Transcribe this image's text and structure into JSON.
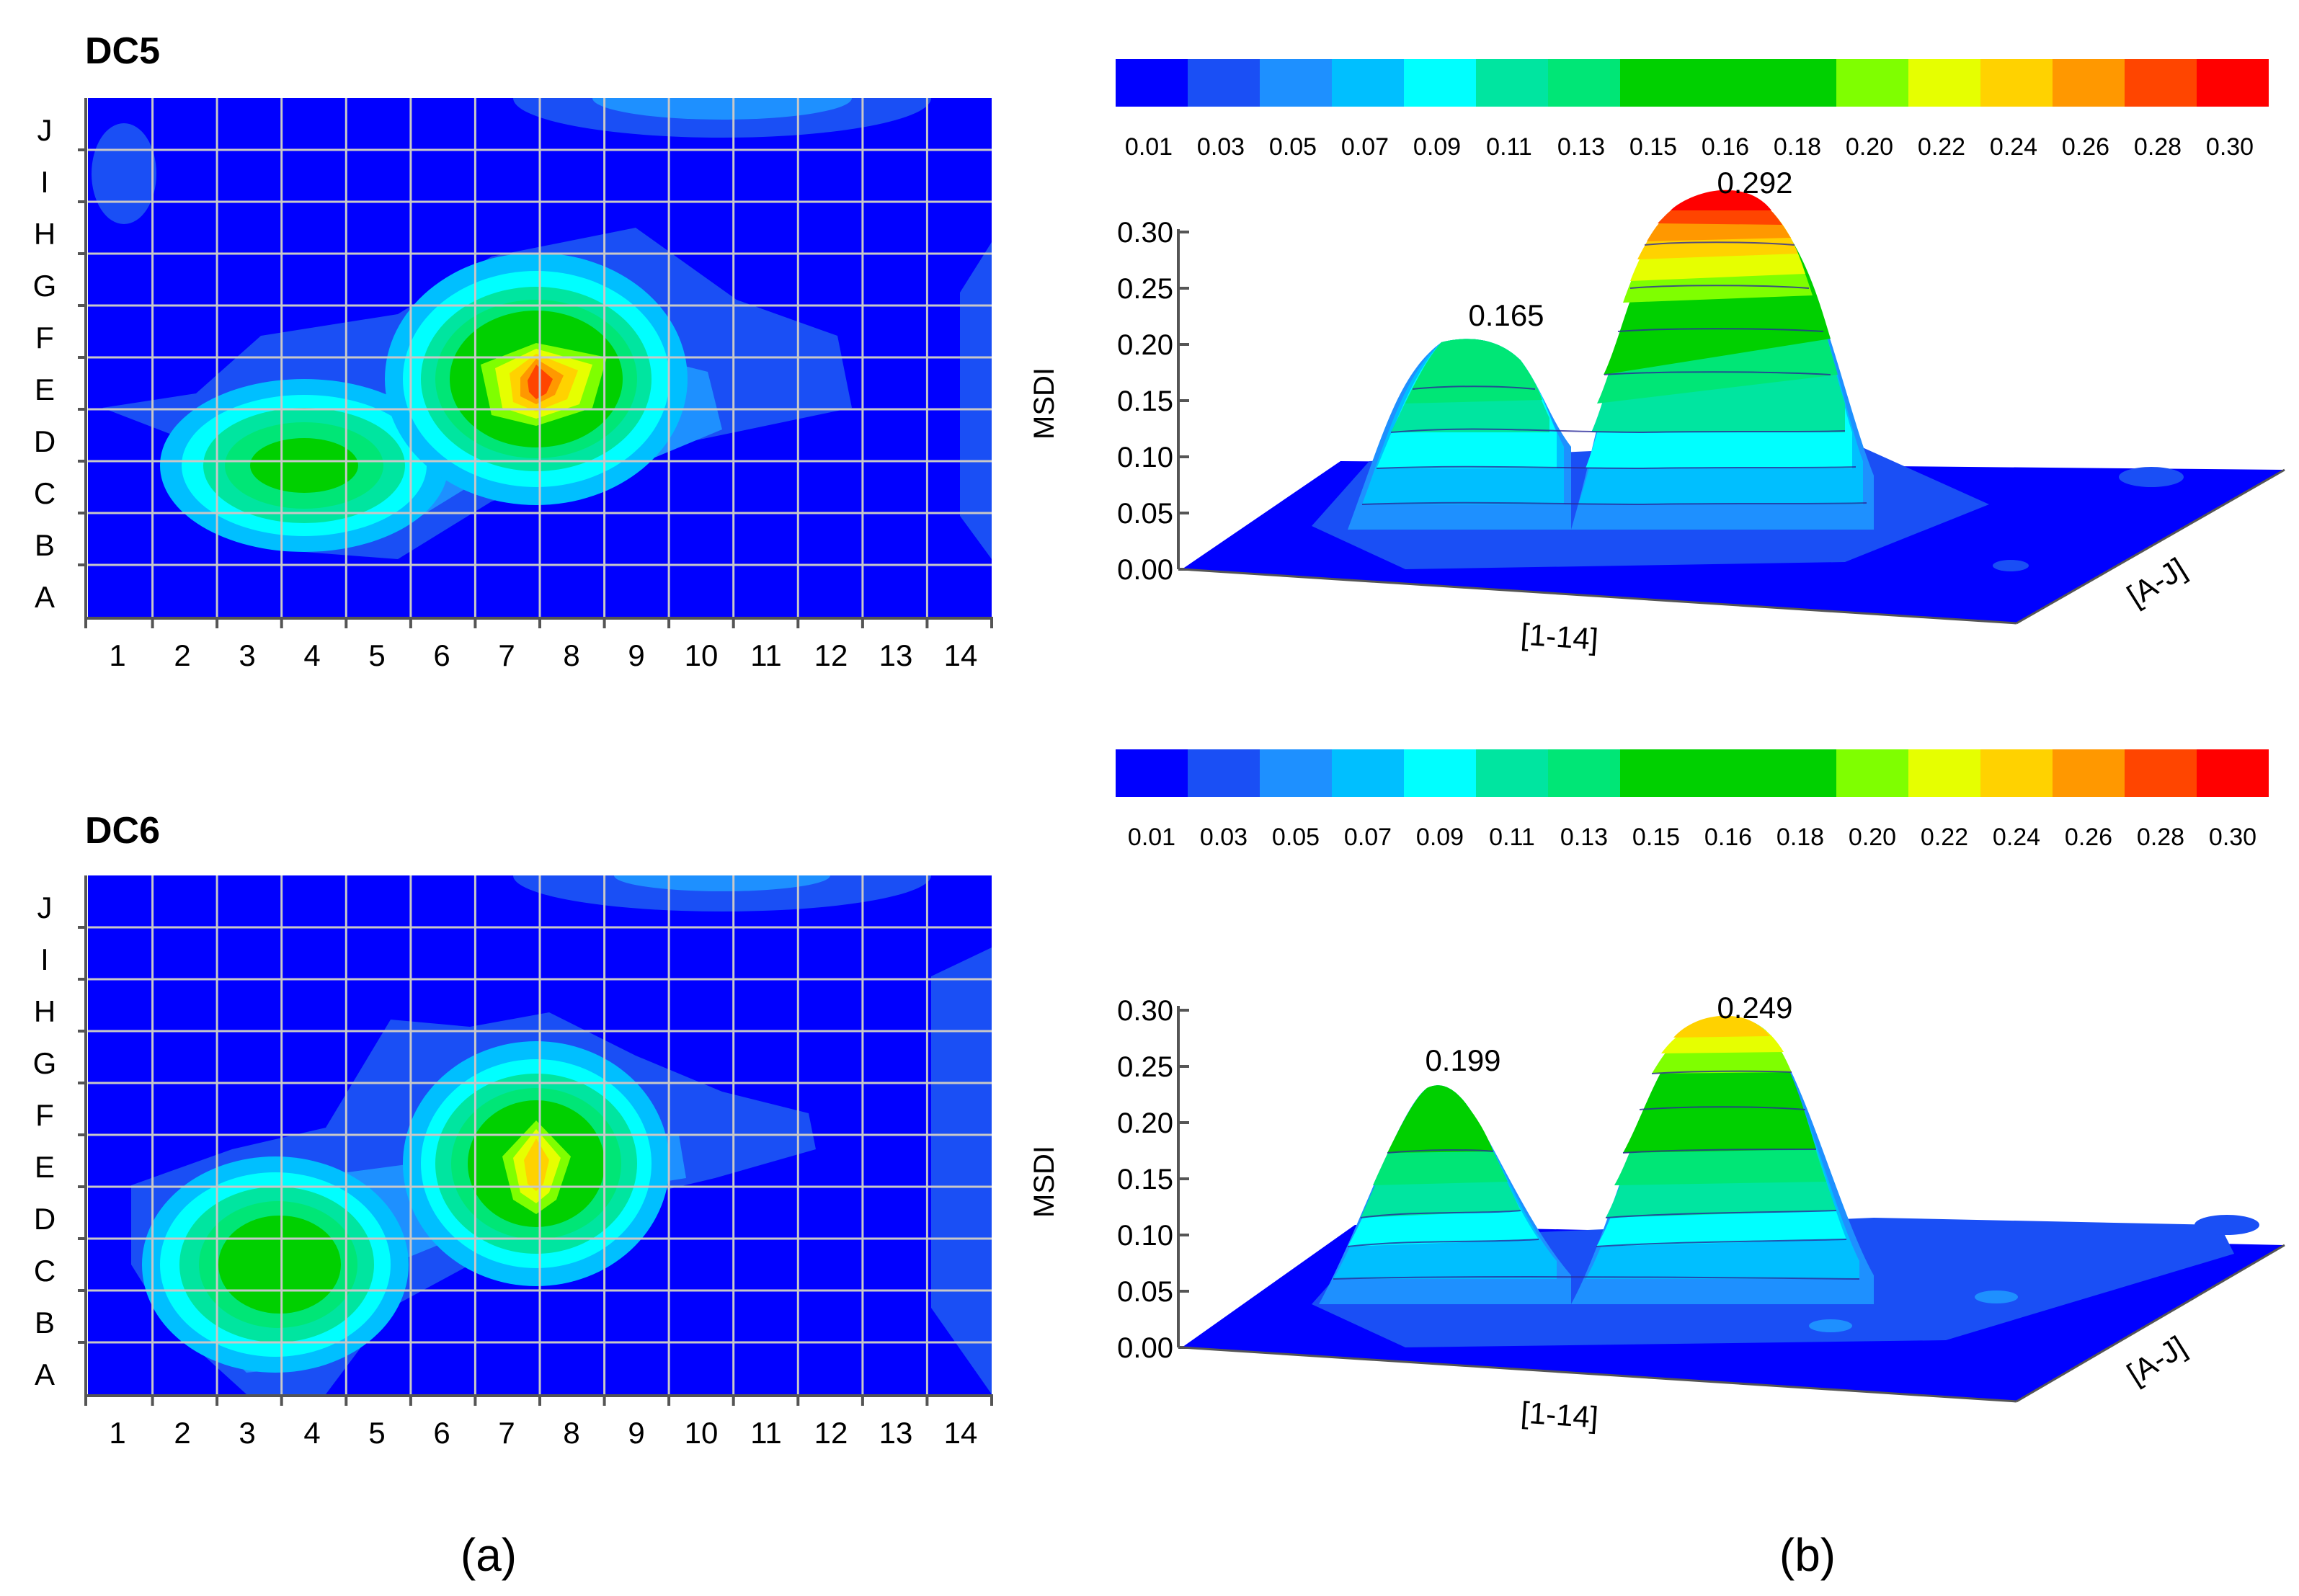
{
  "colors": {
    "background": "#0000ff",
    "grid": "#c8c8c8",
    "palette": [
      "#0000ff",
      "#1a4ff5",
      "#1e90ff",
      "#00bfff",
      "#00ffff",
      "#00e5a0",
      "#00e676",
      "#00d000",
      "#7fff00",
      "#e6ff00",
      "#ffd200",
      "#ff9800",
      "#ff4500",
      "#ff0000"
    ]
  },
  "chart_data": [
    {
      "type": "heatmap",
      "title": "DC5",
      "x": [
        "1",
        "2",
        "3",
        "4",
        "5",
        "6",
        "7",
        "8",
        "9",
        "10",
        "11",
        "12",
        "13",
        "14"
      ],
      "y": [
        "A",
        "B",
        "C",
        "D",
        "E",
        "F",
        "G",
        "H",
        "I",
        "J"
      ],
      "peaks": [
        {
          "x_index": 7,
          "y_index": 4.5,
          "value": 0.292
        },
        {
          "x_index": 4,
          "y_index": 2.9,
          "value": 0.165
        }
      ]
    },
    {
      "type": "heatmap",
      "title": "DC6",
      "x": [
        "1",
        "2",
        "3",
        "4",
        "5",
        "6",
        "7",
        "8",
        "9",
        "10",
        "11",
        "12",
        "13",
        "14"
      ],
      "y": [
        "A",
        "B",
        "C",
        "D",
        "E",
        "F",
        "G",
        "H",
        "I",
        "J"
      ],
      "peaks": [
        {
          "x_index": 7,
          "y_index": 4.5,
          "value": 0.249
        },
        {
          "x_index": 3.5,
          "y_index": 3.0,
          "value": 0.199
        }
      ]
    },
    {
      "type": "area",
      "subtype": "3d-surface",
      "colorbar_ticks": [
        "0.01",
        "0.03",
        "0.05",
        "0.07",
        "0.09",
        "0.11",
        "0.13",
        "0.15",
        "0.16",
        "0.18",
        "0.20",
        "0.22",
        "0.24",
        "0.26",
        "0.28",
        "0.30"
      ],
      "ylabel": "MSDI",
      "xlabel": "[1-14]",
      "zlabel": "[A-J]",
      "yticks": [
        "0.00",
        "0.05",
        "0.10",
        "0.15",
        "0.20",
        "0.25",
        "0.30"
      ],
      "ylim": [
        0,
        0.3
      ],
      "peaks": [
        {
          "label": "0.165",
          "value": 0.165
        },
        {
          "label": "0.292",
          "value": 0.292
        }
      ]
    },
    {
      "type": "area",
      "subtype": "3d-surface",
      "colorbar_ticks": [
        "0.01",
        "0.03",
        "0.05",
        "0.07",
        "0.09",
        "0.11",
        "0.13",
        "0.15",
        "0.16",
        "0.18",
        "0.20",
        "0.22",
        "0.24",
        "0.26",
        "0.28",
        "0.30"
      ],
      "ylabel": "MSDI",
      "xlabel": "[1-14]",
      "zlabel": "[A-J]",
      "yticks": [
        "0.00",
        "0.05",
        "0.10",
        "0.15",
        "0.20",
        "0.25",
        "0.30"
      ],
      "ylim": [
        0,
        0.3
      ],
      "peaks": [
        {
          "label": "0.199",
          "value": 0.199
        },
        {
          "label": "0.249",
          "value": 0.249
        }
      ]
    }
  ],
  "captions": {
    "a": "(a)",
    "b": "(b)"
  }
}
